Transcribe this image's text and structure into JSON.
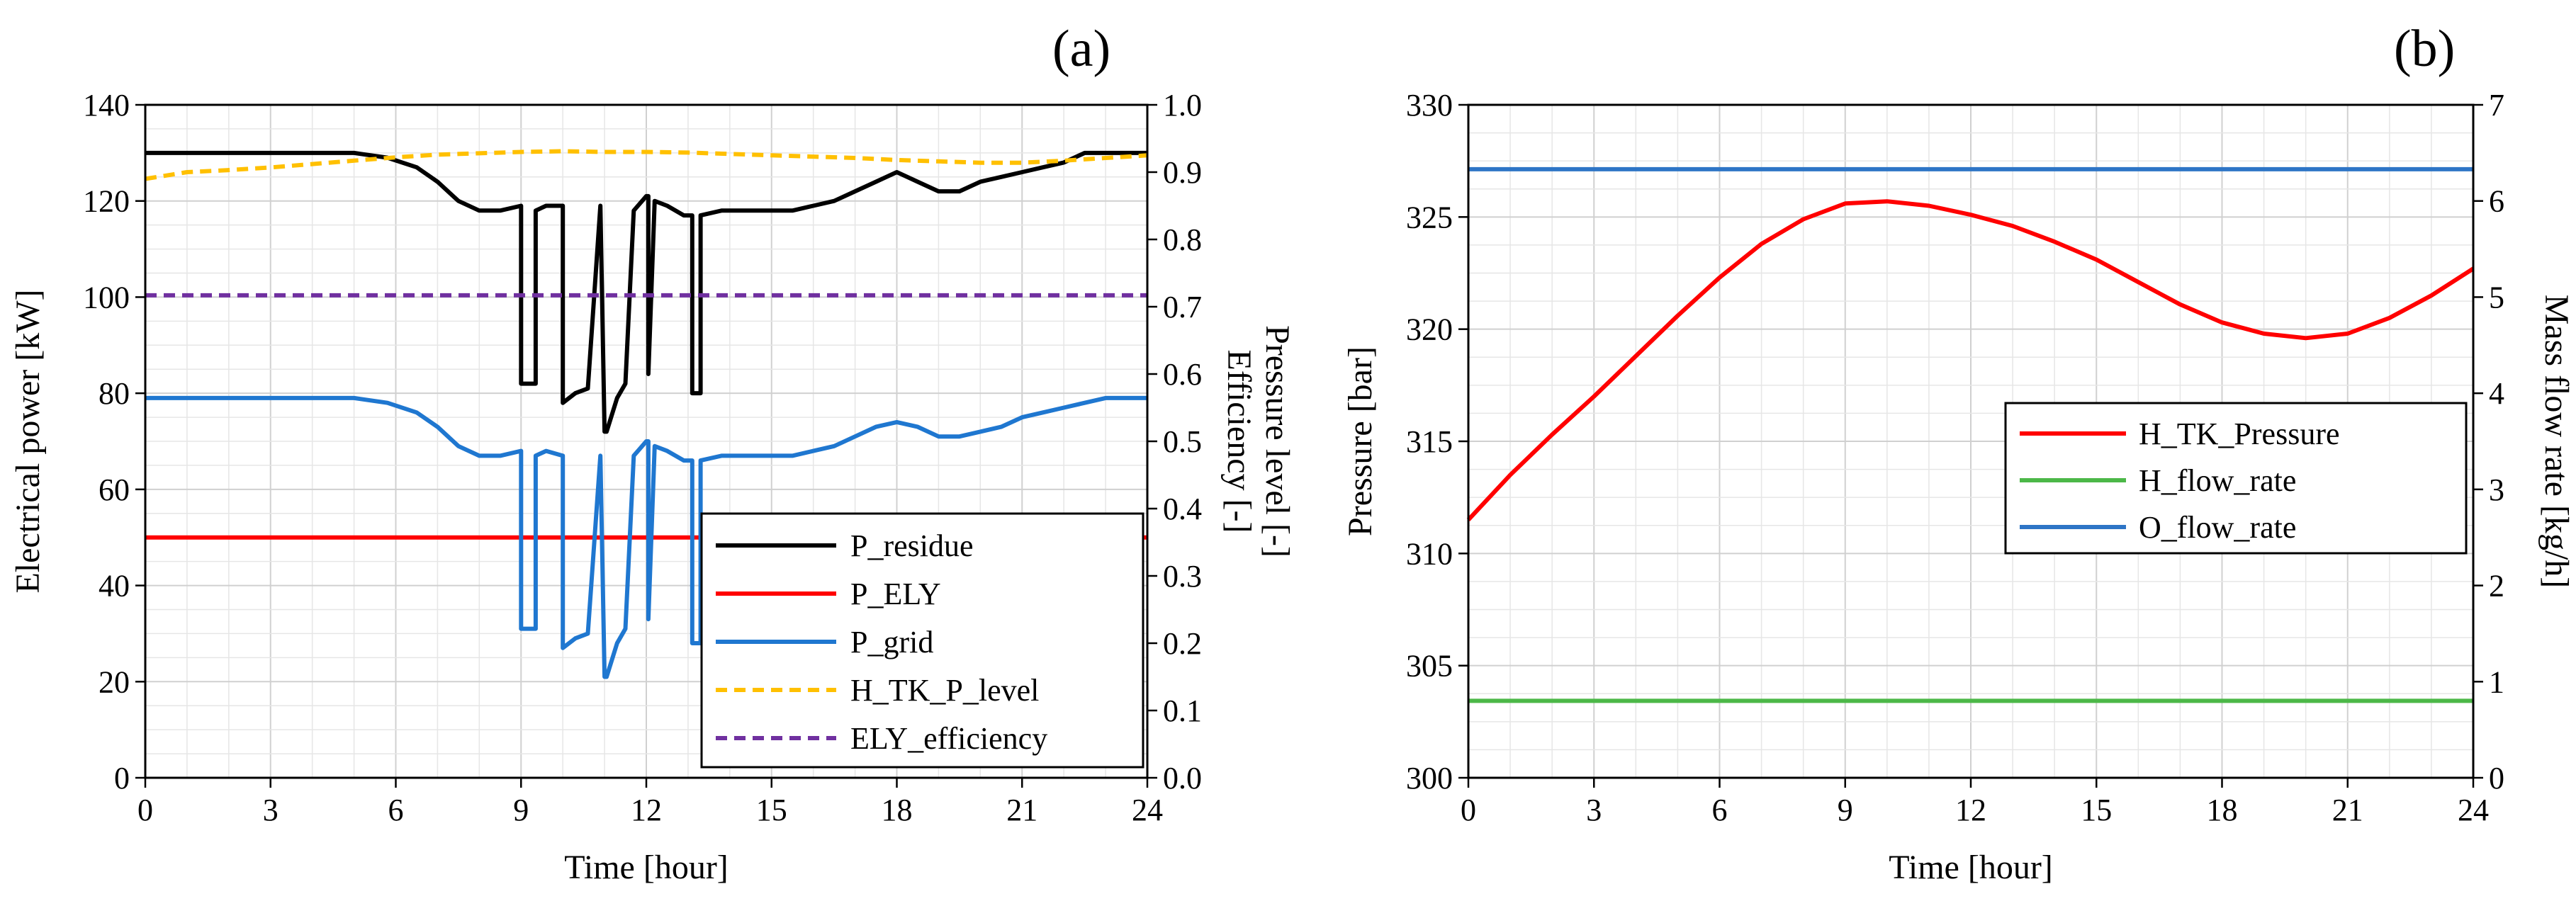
{
  "colors": {
    "black": "#000000",
    "red": "#ff0000",
    "blue": "#1f77d0",
    "yellow": "#ffc000",
    "purple": "#7030a0",
    "green": "#4cb848",
    "blue_b": "#2e75c6"
  },
  "chart_data": [
    {
      "type": "line",
      "panel_label": "(a)",
      "xlabel": "Time [hour]",
      "ylabel": "Electrical power [kW]",
      "y2label_line1": "Pressure level [-]",
      "y2label_line2": "Efficiency [-]",
      "xlim": [
        0,
        24
      ],
      "ylim": [
        0,
        140
      ],
      "y2lim": [
        0,
        1
      ],
      "x_ticks": [
        "0",
        "3",
        "6",
        "9",
        "12",
        "15",
        "18",
        "21",
        "24"
      ],
      "y_ticks": [
        "0",
        "20",
        "40",
        "60",
        "80",
        "100",
        "120",
        "140"
      ],
      "y2_ticks": [
        "0.0",
        "0.1",
        "0.2",
        "0.3",
        "0.4",
        "0.5",
        "0.6",
        "0.7",
        "0.8",
        "0.9",
        "1.0"
      ],
      "grid": true,
      "legend_position": "bottom-right",
      "series": [
        {
          "name": "P_residue",
          "axis": "left",
          "color": "#000000",
          "dash": false,
          "x": [
            0,
            5,
            5.8,
            6.5,
            7.0,
            7.5,
            8.0,
            8.5,
            9.0,
            9.0,
            9.35,
            9.35,
            9.6,
            10.0,
            10.0,
            10.3,
            10.6,
            10.9,
            10.9,
            11.0,
            11.05,
            11.3,
            11.5,
            11.7,
            11.7,
            12.0,
            12.05,
            12.05,
            12.2,
            12.5,
            12.9,
            13.1,
            13.1,
            13.3,
            13.3,
            13.8,
            15,
            15.5,
            16,
            16.5,
            17,
            17.5,
            18,
            18.5,
            19,
            19.5,
            20,
            20.5,
            21,
            21.5,
            22,
            22.5,
            23,
            24
          ],
          "values": [
            130,
            130,
            129,
            127,
            124,
            120,
            118,
            118,
            119,
            82,
            82,
            118,
            119,
            119,
            78,
            80,
            81,
            119,
            119,
            72,
            72,
            79,
            82,
            118,
            118,
            121,
            121,
            84,
            120,
            119,
            117,
            117,
            80,
            80,
            117,
            118,
            118,
            118,
            119,
            120,
            122,
            124,
            126,
            124,
            122,
            122,
            124,
            125,
            126,
            127,
            128,
            130,
            130,
            130
          ]
        },
        {
          "name": "P_ELY",
          "axis": "left",
          "color": "#ff0000",
          "dash": false,
          "x": [
            0,
            24
          ],
          "values": [
            50,
            50
          ]
        },
        {
          "name": "P_grid",
          "axis": "left",
          "color": "#1f77d0",
          "dash": false,
          "x": [
            0,
            5,
            5.8,
            6.5,
            7.0,
            7.5,
            8.0,
            8.5,
            9.0,
            9.0,
            9.35,
            9.35,
            9.6,
            10.0,
            10.0,
            10.3,
            10.6,
            10.9,
            10.9,
            11.0,
            11.05,
            11.3,
            11.5,
            11.7,
            11.7,
            12.0,
            12.05,
            12.05,
            12.2,
            12.5,
            12.9,
            13.1,
            13.1,
            13.3,
            13.3,
            13.8,
            15,
            15.5,
            16,
            16.5,
            17,
            17.5,
            18,
            18.5,
            19,
            19.5,
            20,
            20.5,
            21,
            21.5,
            22,
            22.5,
            23,
            24
          ],
          "values": [
            79,
            79,
            78,
            76,
            73,
            69,
            67,
            67,
            68,
            31,
            31,
            67,
            68,
            67,
            27,
            29,
            30,
            67,
            67,
            21,
            21,
            28,
            31,
            67,
            67,
            70,
            70,
            33,
            69,
            68,
            66,
            66,
            28,
            28,
            66,
            67,
            67,
            67,
            68,
            69,
            71,
            73,
            74,
            73,
            71,
            71,
            72,
            73,
            75,
            76,
            77,
            78,
            79,
            79
          ]
        },
        {
          "name": "H_TK_P_level",
          "axis": "right",
          "color": "#ffc000",
          "dash": true,
          "x": [
            0,
            0.5,
            1,
            2,
            3,
            4,
            5,
            6,
            7,
            8,
            9,
            10,
            11,
            12,
            13,
            14,
            15,
            16,
            17,
            18,
            19,
            20,
            21,
            22,
            23,
            24
          ],
          "values": [
            0.89,
            0.895,
            0.9,
            0.903,
            0.907,
            0.912,
            0.917,
            0.922,
            0.926,
            0.928,
            0.93,
            0.931,
            0.93,
            0.93,
            0.929,
            0.927,
            0.925,
            0.923,
            0.921,
            0.918,
            0.916,
            0.914,
            0.914,
            0.917,
            0.921,
            0.925
          ]
        },
        {
          "name": "ELY_efficiency",
          "axis": "right",
          "color": "#7030a0",
          "dash": true,
          "x": [
            0,
            24
          ],
          "values": [
            0.717,
            0.717
          ]
        }
      ]
    },
    {
      "type": "line",
      "panel_label": "(b)",
      "xlabel": "Time [hour]",
      "ylabel": "Pressure [bar]",
      "y2label": "Mass flow rate [kg/h]",
      "xlim": [
        0,
        24
      ],
      "ylim": [
        300,
        330
      ],
      "y2lim": [
        0,
        7
      ],
      "x_ticks": [
        "0",
        "3",
        "6",
        "9",
        "12",
        "15",
        "18",
        "21",
        "24"
      ],
      "y_ticks": [
        "300",
        "305",
        "310",
        "315",
        "320",
        "325",
        "330"
      ],
      "y2_ticks": [
        "0",
        "1",
        "2",
        "3",
        "4",
        "5",
        "6",
        "7"
      ],
      "grid": true,
      "legend_position": "right",
      "series": [
        {
          "name": "H_TK_Pressure",
          "axis": "left",
          "color": "#ff0000",
          "dash": false,
          "x": [
            0,
            1,
            2,
            3,
            4,
            5,
            6,
            7,
            8,
            9,
            10,
            11,
            12,
            13,
            14,
            15,
            16,
            17,
            18,
            19,
            20,
            21,
            22,
            23,
            24
          ],
          "values": [
            311.5,
            313.5,
            315.3,
            317.0,
            318.8,
            320.6,
            322.3,
            323.8,
            324.9,
            325.6,
            325.7,
            325.5,
            325.1,
            324.6,
            323.9,
            323.1,
            322.1,
            321.1,
            320.3,
            319.8,
            319.6,
            319.8,
            320.5,
            321.5,
            322.7
          ]
        },
        {
          "name": "H_flow_rate",
          "axis": "right",
          "color": "#4cb848",
          "dash": false,
          "x": [
            0,
            24
          ],
          "values": [
            0.8,
            0.8
          ]
        },
        {
          "name": "O_flow_rate",
          "axis": "right",
          "color": "#2e75c6",
          "dash": false,
          "x": [
            0,
            24
          ],
          "values": [
            6.33,
            6.33
          ]
        }
      ]
    }
  ]
}
